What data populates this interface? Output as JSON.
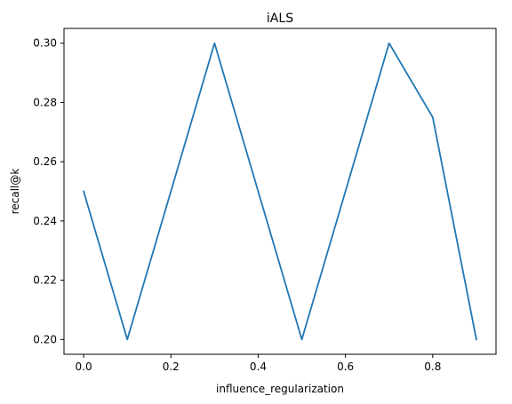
{
  "chart_data": {
    "type": "line",
    "title": "iALS",
    "xlabel": "influence_regularization",
    "ylabel": "recall@k",
    "xlim": [
      -0.045,
      0.945
    ],
    "ylim": [
      0.195,
      0.305
    ],
    "x_ticks": [
      0.0,
      0.2,
      0.4,
      0.6,
      0.8
    ],
    "x_tick_labels": [
      "0.0",
      "0.2",
      "0.4",
      "0.6",
      "0.8"
    ],
    "y_ticks": [
      0.2,
      0.22,
      0.24,
      0.26,
      0.28,
      0.3
    ],
    "y_tick_labels": [
      "0.20",
      "0.22",
      "0.24",
      "0.26",
      "0.28",
      "0.30"
    ],
    "grid": false,
    "series": [
      {
        "color": "#1f77b4",
        "x": [
          0.0,
          0.1,
          0.3,
          0.5,
          0.7,
          0.8,
          0.9
        ],
        "y": [
          0.25,
          0.2,
          0.3,
          0.2,
          0.3,
          0.275,
          0.2
        ]
      }
    ]
  }
}
